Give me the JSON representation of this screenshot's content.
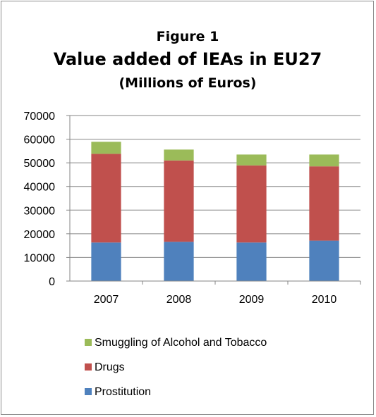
{
  "chart_data": {
    "type": "bar",
    "stacked": true,
    "title_lines": [
      "Figure 1",
      "Value added of IEAs in EU27",
      "(Millions of Euros)"
    ],
    "categories": [
      "2007",
      "2008",
      "2009",
      "2010"
    ],
    "series": [
      {
        "name": "Prostitution",
        "color": "#4f81bd",
        "values": [
          16300,
          16600,
          16300,
          17100
        ]
      },
      {
        "name": "Drugs",
        "color": "#c0504d",
        "values": [
          37500,
          34400,
          32600,
          31400
        ]
      },
      {
        "name": "Smuggling of Alcohol and Tobacco",
        "color": "#9bbb59",
        "values": [
          5100,
          4600,
          4600,
          5000
        ]
      }
    ],
    "ylim": [
      0,
      70000
    ],
    "yticks": [
      0,
      10000,
      20000,
      30000,
      40000,
      50000,
      60000,
      70000
    ],
    "grid": true,
    "legend_position": "bottom",
    "legend_order": [
      "Smuggling of Alcohol and Tobacco",
      "Drugs",
      "Prostitution"
    ]
  }
}
